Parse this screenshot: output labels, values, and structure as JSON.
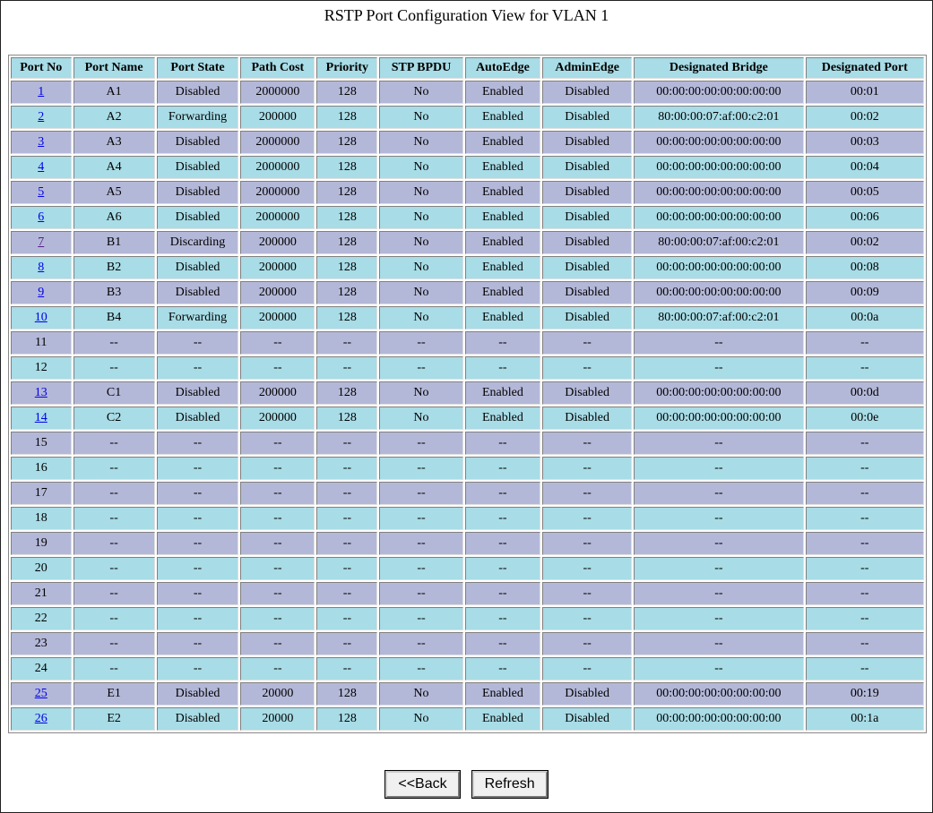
{
  "title": "RSTP Port Configuration View for VLAN 1",
  "table": {
    "headers": [
      "Port No",
      "Port Name",
      "Port State",
      "Path Cost",
      "Priority",
      "STP BPDU",
      "AutoEdge",
      "AdminEdge",
      "Designated Bridge",
      "Designated Port"
    ],
    "rows": [
      [
        "1",
        "A1",
        "Disabled",
        "2000000",
        "128",
        "No",
        "Enabled",
        "Disabled",
        "00:00:00:00:00:00:00:00",
        "00:01"
      ],
      [
        "2",
        "A2",
        "Forwarding",
        "200000",
        "128",
        "No",
        "Enabled",
        "Disabled",
        "80:00:00:07:af:00:c2:01",
        "00:02"
      ],
      [
        "3",
        "A3",
        "Disabled",
        "2000000",
        "128",
        "No",
        "Enabled",
        "Disabled",
        "00:00:00:00:00:00:00:00",
        "00:03"
      ],
      [
        "4",
        "A4",
        "Disabled",
        "2000000",
        "128",
        "No",
        "Enabled",
        "Disabled",
        "00:00:00:00:00:00:00:00",
        "00:04"
      ],
      [
        "5",
        "A5",
        "Disabled",
        "2000000",
        "128",
        "No",
        "Enabled",
        "Disabled",
        "00:00:00:00:00:00:00:00",
        "00:05"
      ],
      [
        "6",
        "A6",
        "Disabled",
        "2000000",
        "128",
        "No",
        "Enabled",
        "Disabled",
        "00:00:00:00:00:00:00:00",
        "00:06"
      ],
      [
        "7",
        "B1",
        "Discarding",
        "200000",
        "128",
        "No",
        "Enabled",
        "Disabled",
        "80:00:00:07:af:00:c2:01",
        "00:02"
      ],
      [
        "8",
        "B2",
        "Disabled",
        "200000",
        "128",
        "No",
        "Enabled",
        "Disabled",
        "00:00:00:00:00:00:00:00",
        "00:08"
      ],
      [
        "9",
        "B3",
        "Disabled",
        "200000",
        "128",
        "No",
        "Enabled",
        "Disabled",
        "00:00:00:00:00:00:00:00",
        "00:09"
      ],
      [
        "10",
        "B4",
        "Forwarding",
        "200000",
        "128",
        "No",
        "Enabled",
        "Disabled",
        "80:00:00:07:af:00:c2:01",
        "00:0a"
      ],
      [
        "11",
        "--",
        "--",
        "--",
        "--",
        "--",
        "--",
        "--",
        "--",
        "--"
      ],
      [
        "12",
        "--",
        "--",
        "--",
        "--",
        "--",
        "--",
        "--",
        "--",
        "--"
      ],
      [
        "13",
        "C1",
        "Disabled",
        "200000",
        "128",
        "No",
        "Enabled",
        "Disabled",
        "00:00:00:00:00:00:00:00",
        "00:0d"
      ],
      [
        "14",
        "C2",
        "Disabled",
        "200000",
        "128",
        "No",
        "Enabled",
        "Disabled",
        "00:00:00:00:00:00:00:00",
        "00:0e"
      ],
      [
        "15",
        "--",
        "--",
        "--",
        "--",
        "--",
        "--",
        "--",
        "--",
        "--"
      ],
      [
        "16",
        "--",
        "--",
        "--",
        "--",
        "--",
        "--",
        "--",
        "--",
        "--"
      ],
      [
        "17",
        "--",
        "--",
        "--",
        "--",
        "--",
        "--",
        "--",
        "--",
        "--"
      ],
      [
        "18",
        "--",
        "--",
        "--",
        "--",
        "--",
        "--",
        "--",
        "--",
        "--"
      ],
      [
        "19",
        "--",
        "--",
        "--",
        "--",
        "--",
        "--",
        "--",
        "--",
        "--"
      ],
      [
        "20",
        "--",
        "--",
        "--",
        "--",
        "--",
        "--",
        "--",
        "--",
        "--"
      ],
      [
        "21",
        "--",
        "--",
        "--",
        "--",
        "--",
        "--",
        "--",
        "--",
        "--"
      ],
      [
        "22",
        "--",
        "--",
        "--",
        "--",
        "--",
        "--",
        "--",
        "--",
        "--"
      ],
      [
        "23",
        "--",
        "--",
        "--",
        "--",
        "--",
        "--",
        "--",
        "--",
        "--"
      ],
      [
        "24",
        "--",
        "--",
        "--",
        "--",
        "--",
        "--",
        "--",
        "--",
        "--"
      ],
      [
        "25",
        "E1",
        "Disabled",
        "20000",
        "128",
        "No",
        "Enabled",
        "Disabled",
        "00:00:00:00:00:00:00:00",
        "00:19"
      ],
      [
        "26",
        "E2",
        "Disabled",
        "20000",
        "128",
        "No",
        "Enabled",
        "Disabled",
        "00:00:00:00:00:00:00:00",
        "00:1a"
      ]
    ]
  },
  "buttons": [
    "<<Back",
    "Refresh"
  ]
}
